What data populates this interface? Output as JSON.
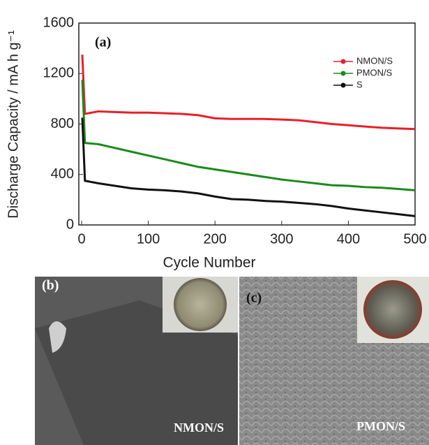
{
  "chart_data": {
    "type": "line",
    "title": "(a)",
    "x_label": "Cycle Number",
    "y_label": "Discharge Capacity / mA h g⁻¹",
    "x": [
      1,
      5,
      25,
      50,
      75,
      100,
      125,
      150,
      175,
      200,
      225,
      250,
      275,
      300,
      325,
      350,
      375,
      400,
      425,
      450,
      475,
      500
    ],
    "series": [
      {
        "name": "NMON/S",
        "color": "#e8202a",
        "values": [
          1350,
          880,
          900,
          895,
          890,
          890,
          885,
          880,
          870,
          845,
          840,
          840,
          840,
          835,
          830,
          815,
          800,
          790,
          780,
          770,
          765,
          760
        ]
      },
      {
        "name": "PMON/S",
        "color": "#1a8a1a",
        "values": [
          1150,
          650,
          640,
          610,
          580,
          550,
          520,
          490,
          460,
          440,
          420,
          400,
          380,
          360,
          345,
          330,
          315,
          310,
          300,
          295,
          285,
          275
        ]
      },
      {
        "name": "S",
        "color": "#111111",
        "values": [
          850,
          350,
          330,
          310,
          290,
          280,
          275,
          265,
          250,
          225,
          205,
          200,
          190,
          185,
          175,
          165,
          150,
          130,
          115,
          100,
          85,
          70
        ]
      }
    ],
    "xlim": [
      0,
      500
    ],
    "xticks": [
      0,
      100,
      200,
      300,
      400,
      500
    ],
    "ylim": [
      0,
      1600
    ],
    "yticks": [
      0,
      400,
      800,
      1200,
      1600
    ],
    "legend": "upper right"
  },
  "panels": [
    {
      "label": "(b)",
      "caption": "NMON/S"
    },
    {
      "label": "(c)",
      "caption": "PMON/S"
    }
  ]
}
